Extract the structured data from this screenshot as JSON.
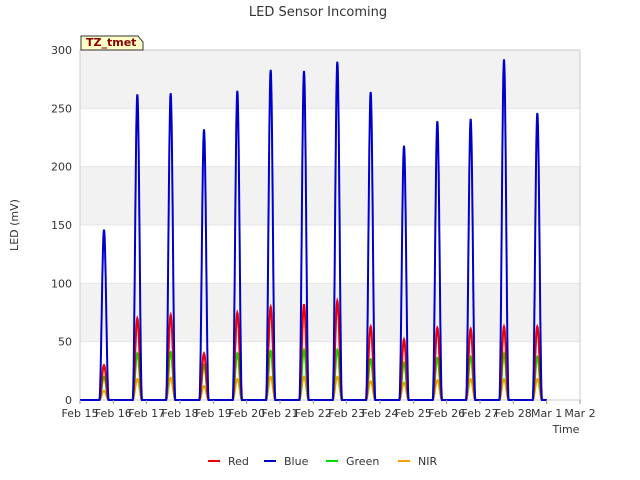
{
  "chart_data": {
    "type": "line",
    "title": "LED Sensor Incoming",
    "xlabel": "Time",
    "ylabel": "LED (mV)",
    "site_tag": "TZ_tmet",
    "ylim": [
      0,
      300
    ],
    "yticks": [
      0,
      50,
      100,
      150,
      200,
      250,
      300
    ],
    "xlim": [
      0,
      15
    ],
    "xticks": [
      {
        "pos": 0,
        "label": "Feb 15"
      },
      {
        "pos": 1,
        "label": "Feb 16"
      },
      {
        "pos": 2,
        "label": "Feb 17"
      },
      {
        "pos": 3,
        "label": "Feb 18"
      },
      {
        "pos": 4,
        "label": "Feb 19"
      },
      {
        "pos": 5,
        "label": "Feb 20"
      },
      {
        "pos": 6,
        "label": "Feb 21"
      },
      {
        "pos": 7,
        "label": "Feb 22"
      },
      {
        "pos": 8,
        "label": "Feb 23"
      },
      {
        "pos": 9,
        "label": "Feb 24"
      },
      {
        "pos": 10,
        "label": "Feb 25"
      },
      {
        "pos": 11,
        "label": "Feb 26"
      },
      {
        "pos": 12,
        "label": "Feb 27"
      },
      {
        "pos": 13,
        "label": "Feb 28"
      },
      {
        "pos": 14,
        "label": "Mar 1"
      },
      {
        "pos": 15,
        "label": "Mar 2"
      }
    ],
    "grid": "horizontal bands",
    "legend_position": "bottom-center",
    "series": [
      {
        "name": "Red",
        "color": "#ee0000",
        "daily_peaks": [
          30,
          70,
          73,
          40,
          75,
          80,
          82,
          85,
          63,
          52,
          62,
          61,
          63,
          63
        ]
      },
      {
        "name": "Blue",
        "color": "#0000cc",
        "daily_peaks": [
          146,
          262,
          263,
          232,
          265,
          283,
          282,
          290,
          264,
          218,
          239,
          241,
          292,
          246
        ]
      },
      {
        "name": "Green",
        "color": "#00dd00",
        "daily_peaks": [
          20,
          40,
          41,
          30,
          40,
          42,
          43,
          43,
          35,
          32,
          36,
          37,
          40,
          37
        ]
      },
      {
        "name": "NIR",
        "color": "#f0a000",
        "daily_peaks": [
          8,
          18,
          19,
          12,
          18,
          20,
          20,
          20,
          16,
          15,
          17,
          18,
          18,
          18
        ]
      }
    ]
  }
}
